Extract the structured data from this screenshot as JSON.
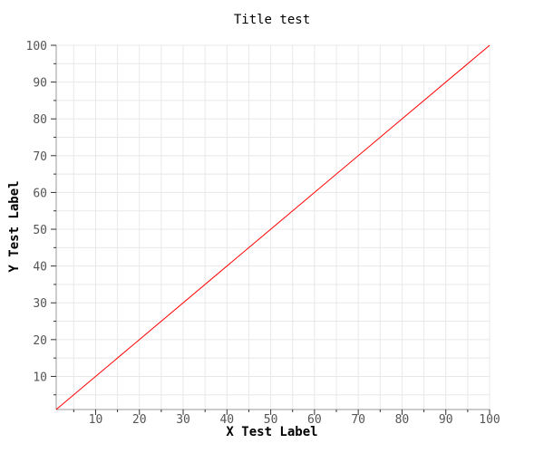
{
  "chart_data": {
    "type": "line",
    "title": "Title test",
    "xlabel": "X Test Label",
    "ylabel": "Y Test Label",
    "xlim": [
      1,
      100
    ],
    "ylim": [
      1,
      100
    ],
    "x_ticks": [
      10,
      20,
      30,
      40,
      50,
      60,
      70,
      80,
      90,
      100
    ],
    "y_ticks": [
      10,
      20,
      30,
      40,
      50,
      60,
      70,
      80,
      90,
      100
    ],
    "x_minor_step": 5,
    "y_minor_step": 5,
    "grid": true,
    "series": [
      {
        "color": "#ff0000",
        "x": [
          1,
          100
        ],
        "y": [
          1,
          100
        ]
      }
    ]
  },
  "colors": {
    "grid": "#e8e8e8",
    "axis": "#999999",
    "tick_label": "#555555",
    "title": "#000000"
  }
}
